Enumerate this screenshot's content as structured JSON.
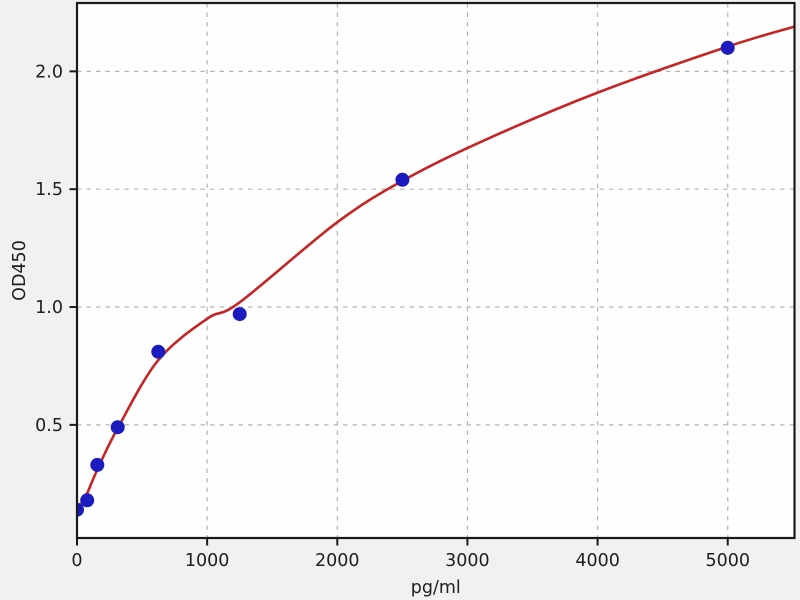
{
  "chart_data": {
    "type": "scatter",
    "title": "",
    "xlabel": "pg/ml",
    "ylabel": "OD450",
    "grid": true,
    "legend": "none",
    "xlim": [
      0,
      5513
    ],
    "ylim": [
      0.02,
      2.29
    ],
    "x_ticks": [
      0,
      1000,
      2000,
      3000,
      4000,
      5000
    ],
    "x_tick_labels": [
      "0",
      "1000",
      "2000",
      "3000",
      "4000",
      "5000"
    ],
    "y_ticks": [
      0.5,
      1.0,
      1.5,
      2.0
    ],
    "y_tick_labels": [
      "0.5",
      "1.0",
      "1.5",
      "2.0"
    ],
    "series": [
      {
        "name": "standard-points",
        "type": "scatter",
        "marker": "circle",
        "color": "#1c1cbe",
        "points": [
          {
            "x": 0,
            "y": 0.14
          },
          {
            "x": 78.125,
            "y": 0.18
          },
          {
            "x": 156.25,
            "y": 0.33
          },
          {
            "x": 312.5,
            "y": 0.49
          },
          {
            "x": 625,
            "y": 0.81
          },
          {
            "x": 1250,
            "y": 0.97
          },
          {
            "x": 2500,
            "y": 1.54
          },
          {
            "x": 5000,
            "y": 2.1
          }
        ]
      },
      {
        "name": "fitted-curve",
        "type": "line",
        "color": "#c42525",
        "points": [
          {
            "x": 0,
            "y": 0.135
          },
          {
            "x": 78,
            "y": 0.21
          },
          {
            "x": 156,
            "y": 0.31
          },
          {
            "x": 312,
            "y": 0.485
          },
          {
            "x": 625,
            "y": 0.775
          },
          {
            "x": 1000,
            "y": 0.95
          },
          {
            "x": 1250,
            "y": 1.02
          },
          {
            "x": 2000,
            "y": 1.36
          },
          {
            "x": 2500,
            "y": 1.535
          },
          {
            "x": 3100,
            "y": 1.7
          },
          {
            "x": 4000,
            "y": 1.91
          },
          {
            "x": 5000,
            "y": 2.105
          },
          {
            "x": 5513,
            "y": 2.19
          }
        ]
      }
    ],
    "colors": {
      "figure_background": "#f1f1ef",
      "plot_background": "#fefefe",
      "gridline": "#b5b5b5",
      "axis": "#1a1a1a",
      "marker": "#1c1cbe",
      "curve": "#c42525",
      "text": "#1e1e1e"
    }
  }
}
